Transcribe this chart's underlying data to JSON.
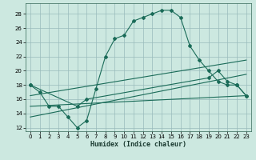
{
  "xlabel": "Humidex (Indice chaleur)",
  "bg_color": "#cce8e0",
  "grid_color": "#99bbbb",
  "line_color": "#1a6b58",
  "xlim": [
    -0.5,
    23.5
  ],
  "ylim": [
    11.5,
    29.5
  ],
  "xticks": [
    0,
    1,
    2,
    3,
    4,
    5,
    6,
    7,
    8,
    9,
    10,
    11,
    12,
    13,
    14,
    15,
    16,
    17,
    18,
    19,
    20,
    21,
    22,
    23
  ],
  "yticks": [
    12,
    14,
    16,
    18,
    20,
    22,
    24,
    26,
    28
  ],
  "series1_x": [
    0,
    1,
    2,
    3,
    4,
    5,
    6,
    7,
    8,
    9,
    10,
    11,
    12,
    13,
    14,
    15,
    16,
    17,
    18,
    19,
    20,
    21,
    22,
    23
  ],
  "series1_y": [
    18,
    17,
    15,
    15,
    13.5,
    12,
    13,
    17.5,
    22,
    24.5,
    25,
    27,
    27.5,
    28,
    28.5,
    28.5,
    27.5,
    23.5,
    21.5,
    20,
    18.5,
    18,
    18,
    16.5
  ],
  "series2_x": [
    0,
    5,
    6,
    19,
    20,
    21,
    22,
    23
  ],
  "series2_y": [
    18,
    15,
    16,
    19,
    20,
    18.5,
    18,
    16.5
  ],
  "series3_x": [
    0,
    23
  ],
  "series3_y": [
    16.5,
    21.5
  ],
  "series4_x": [
    0,
    23
  ],
  "series4_y": [
    15,
    16.5
  ],
  "series5_x": [
    0,
    23
  ],
  "series5_y": [
    13.5,
    19.5
  ]
}
